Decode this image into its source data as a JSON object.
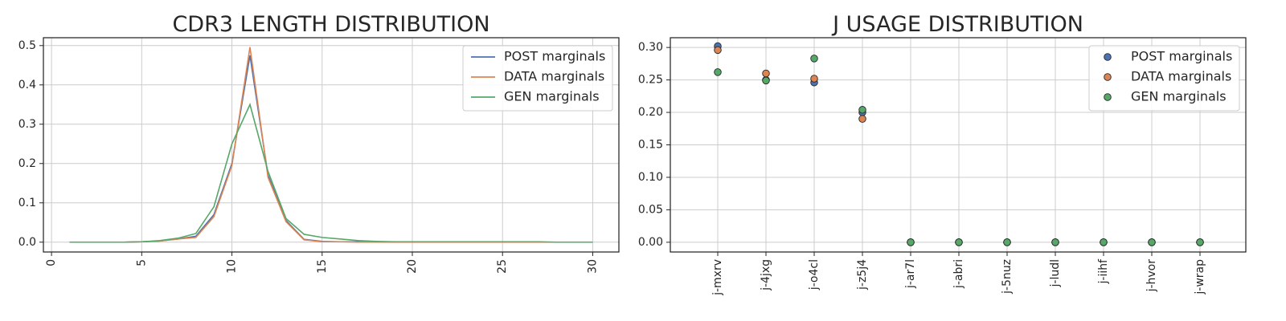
{
  "chart_data": [
    {
      "type": "line",
      "title": "CDR3 LENGTH DISTRIBUTION",
      "xlabel": "",
      "ylabel": "",
      "xlim": [
        -0.45,
        31.45
      ],
      "ylim": [
        -0.025,
        0.52
      ],
      "xticks": [
        0,
        5,
        10,
        15,
        20,
        25,
        30
      ],
      "yticks": [
        0.0,
        0.1,
        0.2,
        0.3,
        0.4,
        0.5
      ],
      "xtick_rotation": 90,
      "grid": true,
      "legend_placement": "top-right",
      "x": [
        1,
        2,
        3,
        4,
        5,
        6,
        7,
        8,
        9,
        10,
        11,
        12,
        13,
        14,
        15,
        16,
        17,
        18,
        19,
        20,
        21,
        22,
        23,
        24,
        25,
        26,
        27,
        28,
        29,
        30
      ],
      "series": [
        {
          "name": "POST marginals",
          "color": "#4c72b0",
          "values": [
            0.0,
            0.0,
            0.0,
            0.0,
            0.001,
            0.003,
            0.008,
            0.015,
            0.07,
            0.2,
            0.475,
            0.17,
            0.055,
            0.007,
            0.002,
            0.001,
            0.001,
            0.0,
            0.0,
            0.0,
            0.0,
            0.0,
            0.0,
            0.0,
            0.0,
            0.0,
            0.0,
            0.0,
            0.0,
            0.0
          ]
        },
        {
          "name": "DATA marginals",
          "color": "#dd8452",
          "values": [
            0.0,
            0.0,
            0.0,
            0.0,
            0.001,
            0.003,
            0.008,
            0.012,
            0.065,
            0.195,
            0.496,
            0.165,
            0.052,
            0.006,
            0.001,
            0.001,
            0.0,
            0.0,
            0.0,
            0.0,
            0.0,
            0.0,
            0.0,
            0.0,
            0.0,
            0.0,
            0.0,
            0.0,
            0.0,
            0.0
          ]
        },
        {
          "name": "GEN marginals",
          "color": "#55a868",
          "values": [
            0.0,
            0.0,
            0.0,
            0.0,
            0.001,
            0.004,
            0.01,
            0.022,
            0.09,
            0.25,
            0.35,
            0.18,
            0.06,
            0.02,
            0.012,
            0.008,
            0.004,
            0.002,
            0.001,
            0.001,
            0.001,
            0.001,
            0.001,
            0.001,
            0.001,
            0.001,
            0.001,
            0.0,
            0.0,
            0.0
          ]
        }
      ]
    },
    {
      "type": "scatter",
      "title": "J USAGE DISTRIBUTION",
      "xlabel": "",
      "ylabel": "",
      "categories": [
        "j-mxrv",
        "j-4jxg",
        "j-o4cl",
        "j-z5j4",
        "j-ar7l",
        "j-abri",
        "j-5nuz",
        "j-ludl",
        "j-iihf",
        "j-hvor",
        "j-wrap"
      ],
      "ylim": [
        -0.015,
        0.315
      ],
      "yticks": [
        0.0,
        0.05,
        0.1,
        0.15,
        0.2,
        0.25,
        0.3
      ],
      "xtick_rotation": 90,
      "grid": true,
      "legend_placement": "top-right",
      "series": [
        {
          "name": "POST marginals",
          "color": "#4c72b0",
          "values": [
            0.302,
            0.25,
            0.246,
            0.2,
            0.0,
            0.0,
            0.0,
            0.0,
            0.0,
            0.0,
            0.0
          ]
        },
        {
          "name": "DATA marginals",
          "color": "#dd8452",
          "values": [
            0.296,
            0.26,
            0.252,
            0.19,
            0.0,
            0.0,
            0.0,
            0.0,
            0.0,
            0.0,
            0.0
          ]
        },
        {
          "name": "GEN marginals",
          "color": "#55a868",
          "values": [
            0.262,
            0.249,
            0.283,
            0.204,
            0.0,
            0.0,
            0.0,
            0.0,
            0.0,
            0.0,
            0.0
          ]
        }
      ]
    }
  ]
}
